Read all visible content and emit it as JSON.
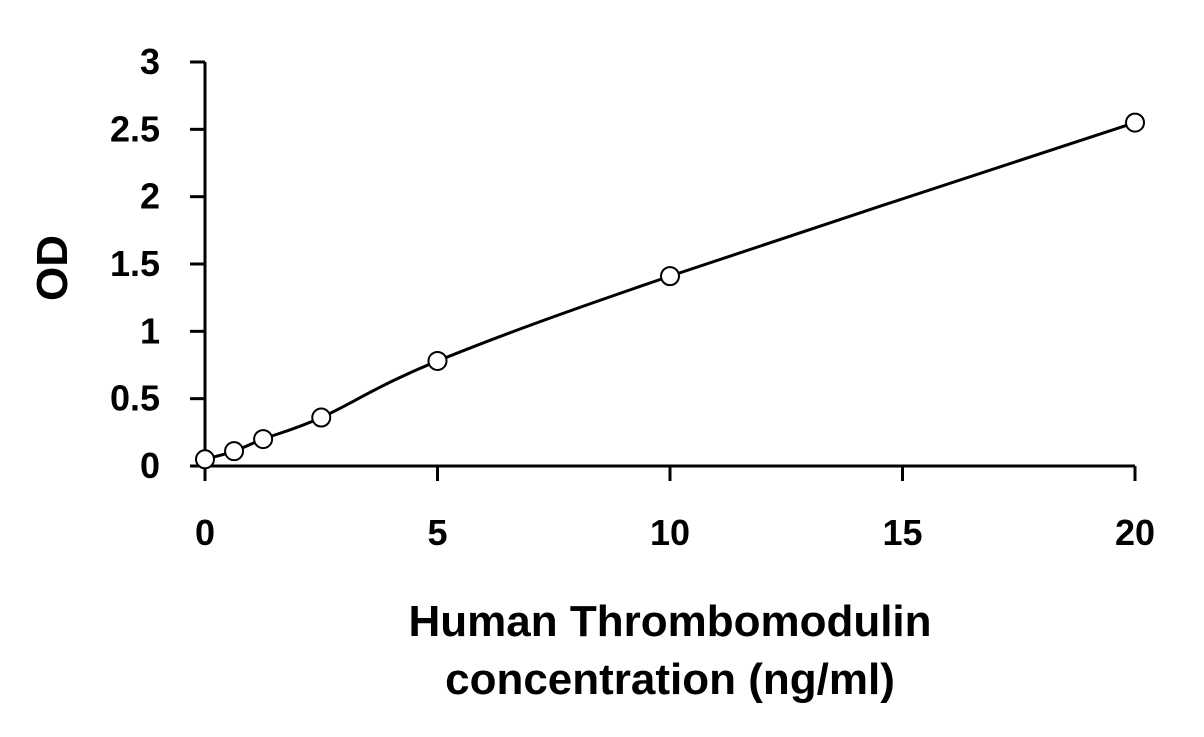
{
  "chart_data": {
    "type": "scatter",
    "title": "",
    "xlabel_lines": [
      "Human Thrombomodulin",
      "concentration (ng/ml)"
    ],
    "ylabel": "OD",
    "xlim": [
      0,
      20
    ],
    "ylim": [
      0,
      3
    ],
    "x_ticks": [
      0,
      5,
      10,
      15,
      20
    ],
    "y_ticks": [
      0,
      0.5,
      1,
      1.5,
      2,
      2.5,
      3
    ],
    "x_tick_labels": [
      "0",
      "5",
      "10",
      "15",
      "20"
    ],
    "y_tick_labels": [
      "0",
      "0.5",
      "1",
      "1.5",
      "2",
      "2.5",
      "3"
    ],
    "grid": false,
    "legend": "none",
    "series": [
      {
        "x": [
          0,
          0.625,
          1.25,
          2.5,
          5,
          10,
          20
        ],
        "y": [
          0.05,
          0.11,
          0.2,
          0.36,
          0.78,
          1.41,
          2.55
        ],
        "marker": "open-circle",
        "fit": "smooth curve"
      }
    ],
    "colors": {
      "line": "#000000",
      "marker_fill": "#ffffff"
    }
  }
}
